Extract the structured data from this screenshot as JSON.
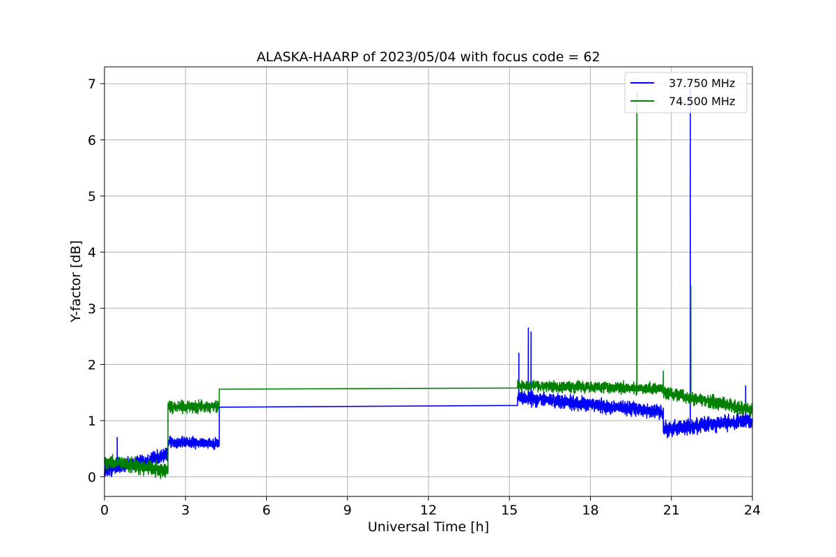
{
  "chart_data": {
    "type": "line",
    "title": "ALASKA-HAARP of 2023/05/04 with focus code = 62",
    "xlabel": "Universal Time [h]",
    "ylabel": "Y-factor [dB]",
    "xlim": [
      0,
      24
    ],
    "ylim": [
      -0.35,
      7.3
    ],
    "xticks": [
      0,
      3,
      6,
      9,
      12,
      15,
      18,
      21,
      24
    ],
    "xtick_labels": [
      "0",
      "3",
      "6",
      "9",
      "12",
      "15",
      "18",
      "21",
      "24"
    ],
    "yticks": [
      0,
      1,
      2,
      3,
      4,
      5,
      6,
      7
    ],
    "ytick_labels": [
      "0",
      "1",
      "2",
      "3",
      "4",
      "5",
      "6",
      "7"
    ],
    "grid": true,
    "legend_position": "top-right",
    "series": [
      {
        "name": "37.750 MHz",
        "color": "#0000ff",
        "segments": [
          {
            "x_start": 0.0,
            "x_end": 2.35,
            "y_start": 0.1,
            "y_end": 0.4,
            "noise": 0.09
          },
          {
            "x_start": 2.35,
            "x_end": 4.25,
            "y_start": 0.62,
            "y_end": 0.6,
            "noise": 0.07
          },
          {
            "x_start": 4.25,
            "x_end": 15.3,
            "y_start": 1.24,
            "y_end": 1.27,
            "noise": 0.0
          },
          {
            "x_start": 15.3,
            "x_end": 20.7,
            "y_start": 1.42,
            "y_end": 1.15,
            "noise": 0.09
          },
          {
            "x_start": 20.7,
            "x_end": 24.0,
            "y_start": 0.85,
            "y_end": 1.0,
            "noise": 0.1
          }
        ],
        "spikes": [
          {
            "x": 0.47,
            "y": 0.7
          },
          {
            "x": 15.35,
            "y": 2.2
          },
          {
            "x": 15.7,
            "y": 2.65
          },
          {
            "x": 15.8,
            "y": 2.58
          },
          {
            "x": 21.7,
            "y": 6.9
          },
          {
            "x": 23.75,
            "y": 1.62
          }
        ]
      },
      {
        "name": "74.500 MHz",
        "color": "#008000",
        "segments": [
          {
            "x_start": 0.0,
            "x_end": 2.35,
            "y_start": 0.28,
            "y_end": 0.1,
            "noise": 0.09
          },
          {
            "x_start": 2.35,
            "x_end": 4.25,
            "y_start": 1.25,
            "y_end": 1.25,
            "noise": 0.08
          },
          {
            "x_start": 4.25,
            "x_end": 15.3,
            "y_start": 1.56,
            "y_end": 1.58,
            "noise": 0.0
          },
          {
            "x_start": 15.3,
            "x_end": 20.7,
            "y_start": 1.62,
            "y_end": 1.57,
            "noise": 0.07
          },
          {
            "x_start": 20.7,
            "x_end": 24.0,
            "y_start": 1.5,
            "y_end": 1.2,
            "noise": 0.08
          }
        ],
        "spikes": [
          {
            "x": 19.72,
            "y": 6.85
          },
          {
            "x": 21.72,
            "y": 3.4
          },
          {
            "x": 20.7,
            "y": 1.88
          }
        ]
      }
    ]
  }
}
